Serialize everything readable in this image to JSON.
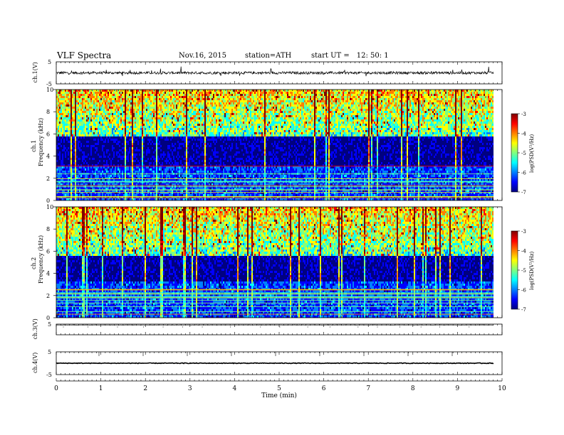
{
  "header": {
    "title": "VLF  Spectra",
    "date": "Nov.16, 2015",
    "station": "station=ATH",
    "start_label": "start  UT  =",
    "start_time": "12: 50: 1"
  },
  "colors": {
    "jet": [
      "#000080",
      "#0000ff",
      "#0080ff",
      "#00ffff",
      "#80ff80",
      "#ffff00",
      "#ff8000",
      "#ff0000",
      "#800000"
    ],
    "background": "#ffffff",
    "trace": "#000000"
  },
  "chart_data": [
    {
      "type": "line",
      "panel": "ch1-waveform",
      "ylabel": "ch.1(V)",
      "ylim": [
        -5,
        5
      ],
      "yticks": [
        "5",
        "-5"
      ],
      "x_range": [
        0,
        9.8
      ],
      "series": [
        {
          "values_note": "",
          "mean": 0,
          "amplitude": 0.6
        }
      ]
    },
    {
      "type": "heatmap",
      "panel": "ch1-spectrogram",
      "ylabel": [
        "ch.1",
        "Frequency  (kHz)"
      ],
      "ylim": [
        0,
        10
      ],
      "yticks": [
        "0",
        "2",
        "4",
        "6",
        "8",
        "10"
      ],
      "x_range": [
        0,
        9.8
      ],
      "quiet_band_khz": [
        3.1,
        5.8
      ],
      "colorbar": {
        "label": "log(PSD(V²/Hz)",
        "range": [
          -7,
          -3
        ],
        "ticks": [
          "-3",
          "-4",
          "-5",
          "-6",
          "-7"
        ]
      }
    },
    {
      "type": "heatmap",
      "panel": "ch2-spectrogram",
      "ylabel": [
        "ch.2",
        "Frequency  (kHz)"
      ],
      "ylim": [
        0,
        10
      ],
      "yticks": [
        "0",
        "2",
        "4",
        "6",
        "8",
        "10"
      ],
      "x_range": [
        0,
        9.8
      ],
      "quiet_band_khz": [
        3.3,
        5.7
      ],
      "colorbar": {
        "label": "log(PSD(V²/Hz)",
        "range": [
          -7,
          -3
        ],
        "ticks": [
          "-3",
          "-4",
          "-5",
          "-6",
          "-7"
        ]
      }
    },
    {
      "type": "line",
      "panel": "ch3-waveform",
      "ylabel": "ch.3(V)",
      "ylim": [
        -5,
        5
      ],
      "yticks": [
        "5"
      ],
      "x_range": [
        0,
        9.8
      ],
      "series": [
        {
          "mean": 4.2,
          "amplitude": 0.05
        }
      ]
    },
    {
      "type": "line",
      "panel": "ch4-waveform",
      "ylabel": "ch.4(V)",
      "ylim": [
        -5,
        5
      ],
      "yticks": [
        "5",
        "-5"
      ],
      "x_range": [
        0,
        9.8
      ],
      "series": [
        {
          "mean": 0,
          "amplitude": 0.15
        }
      ]
    },
    {
      "type": "axis",
      "panel": "time-axis",
      "xlabel": "Time  (min)",
      "xlim": [
        0,
        10
      ],
      "xticks": [
        "0",
        "1",
        "2",
        "3",
        "4",
        "5",
        "6",
        "7",
        "8",
        "9",
        "10"
      ]
    }
  ]
}
